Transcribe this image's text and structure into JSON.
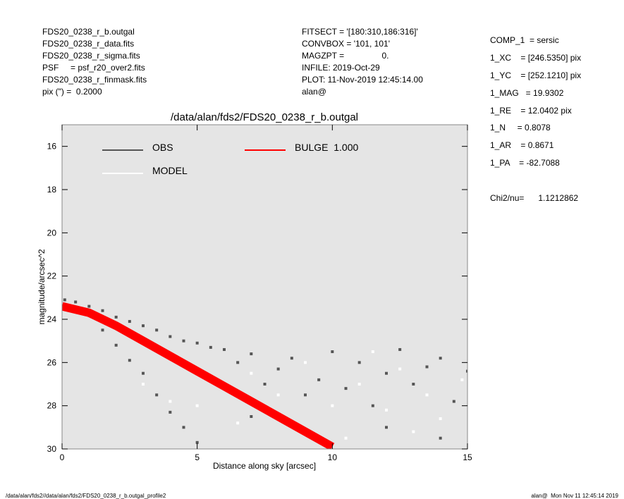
{
  "header": {
    "left": [
      "FDS20_0238_r_b.outgal",
      "FDS20_0238_r_data.fits",
      "FDS20_0238_r_sigma.fits",
      "PSF     = psf_r20_over2.fits",
      "FDS20_0238_r_finmask.fits",
      "pix (\") =  0.2000"
    ],
    "middle": [
      "FITSECT = '[180:310,186:316]'",
      "CONVBOX = '101, 101'",
      "MAGZPT =                0.",
      "INFILE: 2019-Oct-29",
      "PLOT: 11-Nov-2019 12:45:14.00",
      "alan@"
    ],
    "right": [
      "COMP_1  = sersic",
      "1_XC    = [246.5350] pix",
      "1_YC    = [252.1210] pix",
      "1_MAG   = 19.9302",
      "1_RE    = 12.0402 pix",
      "1_N     = 0.8078",
      "1_AR    = 0.8671",
      "1_PA    = -82.7088"
    ],
    "chi": "Chi2/nu=      1.1212862"
  },
  "footer": {
    "left": "/data/alan/fds2//data/alan/fds2/FDS20_0238_r_b.outgal_profile2",
    "right": "alan@  Mon Nov 11 12:45:14 2019"
  },
  "chart_data": {
    "type": "scatter",
    "title": "/data/alan/fds2/FDS20_0238_r_b.outgal",
    "xlabel": "Distance along sky [arcsec]",
    "ylabel": "magnitude/arcsec^2",
    "xlim": [
      0,
      15
    ],
    "ylim": [
      15,
      30
    ],
    "y_inverted": true,
    "xticks": [
      0,
      5,
      10,
      15
    ],
    "yticks": [
      16,
      18,
      20,
      22,
      24,
      26,
      28,
      30
    ],
    "background": "#e5e5e5",
    "series": [
      {
        "name": "OBS",
        "color": "#555555",
        "mode": "points",
        "x": [
          0.1,
          0.5,
          1,
          1.5,
          2,
          2.5,
          3,
          3.5,
          4,
          4.5,
          5,
          5.5,
          6,
          1.5,
          2,
          2.5,
          3,
          3.5,
          4,
          4.5,
          5,
          6.5,
          7,
          7.5,
          8,
          8.5,
          9,
          9.5,
          10,
          10.5,
          11,
          11.5,
          12,
          12.5,
          13,
          13.5,
          14,
          14.5,
          15,
          7,
          9,
          12,
          14
        ],
        "values": [
          23.1,
          23.2,
          23.4,
          23.6,
          23.9,
          24.1,
          24.3,
          24.5,
          24.8,
          25.0,
          25.1,
          25.3,
          25.4,
          24.5,
          25.2,
          25.9,
          26.5,
          27.5,
          28.3,
          29.0,
          29.7,
          26.0,
          25.6,
          27.0,
          26.3,
          25.8,
          27.5,
          26.8,
          25.5,
          27.2,
          26.0,
          28.0,
          26.5,
          25.4,
          27.0,
          26.2,
          25.8,
          27.8,
          26.4,
          28.5,
          29.3,
          29.0,
          29.5
        ]
      },
      {
        "name": "MODEL",
        "color": "#ffffff",
        "mode": "points",
        "x": [
          3,
          4,
          5,
          6,
          6.5,
          7,
          8,
          8.5,
          9,
          10,
          10.5,
          11,
          12,
          12.5,
          13,
          13.5,
          14,
          14.8,
          11.5,
          5.5
        ],
        "values": [
          27.0,
          27.8,
          28.0,
          27.0,
          28.8,
          26.5,
          27.5,
          29.0,
          26.0,
          28.0,
          29.5,
          27.0,
          28.2,
          26.3,
          29.2,
          27.5,
          28.6,
          26.8,
          25.5,
          26.8
        ]
      },
      {
        "name": "BULGE  1.000",
        "color": "#ff0000",
        "mode": "band",
        "x": [
          0,
          1,
          2,
          3,
          4,
          5,
          6,
          7,
          8,
          9,
          10
        ],
        "values": [
          23.4,
          23.7,
          24.3,
          25.0,
          25.7,
          26.4,
          27.1,
          27.8,
          28.5,
          29.2,
          29.9
        ]
      }
    ]
  }
}
